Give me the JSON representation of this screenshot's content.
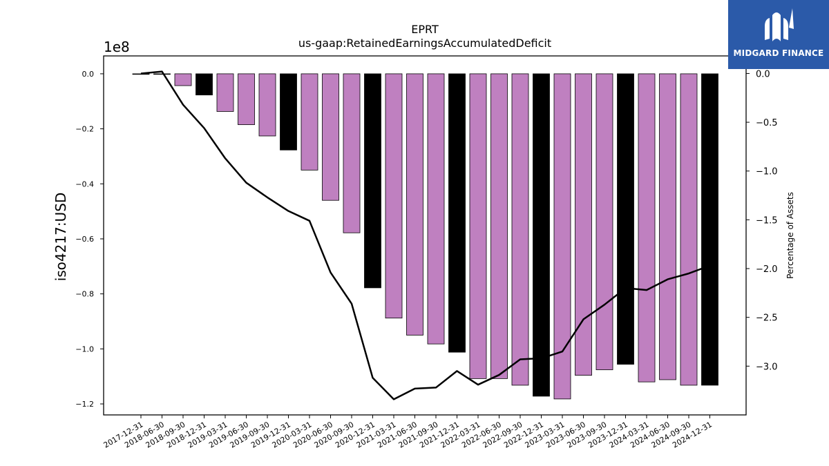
{
  "brand": {
    "name": "MIDGARD FINANCE",
    "bg_color": "#2b5aa9"
  },
  "chart_data": {
    "type": "bar",
    "title": "EPRT",
    "subtitle": "us-gaap:RetainedEarningsAccumulatedDeficit",
    "ylabel": "iso4217:USD",
    "y_offset_label": "1e8",
    "y_scale": 100000000,
    "ylim": [
      -1.24,
      0.065
    ],
    "yticks": [
      0.0,
      -0.2,
      -0.4,
      -0.6,
      -0.8,
      -1.0,
      -1.2
    ],
    "y2label": "Percentage of Assets",
    "y2lim": [
      -3.5,
      0.18
    ],
    "y2ticks": [
      0.0,
      -0.5,
      -1.0,
      -1.5,
      -2.0,
      -2.5,
      -3.0
    ],
    "bar_colors": {
      "default": "#bf80c0",
      "year_end": "#000000"
    },
    "categories": [
      "2017-12-31",
      "2018-06-30",
      "2018-09-30",
      "2018-12-31",
      "2019-03-31",
      "2019-06-30",
      "2019-09-30",
      "2019-12-31",
      "2020-03-31",
      "2020-06-30",
      "2020-09-30",
      "2020-12-31",
      "2021-03-31",
      "2021-06-30",
      "2021-09-30",
      "2021-12-31",
      "2022-03-31",
      "2022-06-30",
      "2022-09-30",
      "2022-12-31",
      "2023-03-31",
      "2023-06-30",
      "2023-09-30",
      "2023-12-31",
      "2024-03-31",
      "2024-06-30",
      "2024-09-30",
      "2024-12-31"
    ],
    "series": [
      {
        "kind": "bar",
        "values": [
          -0.001,
          -0.001,
          -0.043,
          -0.077,
          -0.137,
          -0.185,
          -0.226,
          -0.277,
          -0.35,
          -0.46,
          -0.578,
          -0.778,
          -0.888,
          -0.95,
          -0.982,
          -1.012,
          -1.108,
          -1.108,
          -1.132,
          -1.172,
          -1.182,
          -1.096,
          -1.076,
          -1.056,
          -1.12,
          -1.112,
          -1.132,
          -1.132
        ],
        "year_end": [
          true,
          false,
          false,
          true,
          false,
          false,
          false,
          true,
          false,
          false,
          false,
          true,
          false,
          false,
          false,
          true,
          false,
          false,
          false,
          true,
          false,
          false,
          false,
          true,
          false,
          false,
          false,
          true
        ]
      },
      {
        "kind": "line",
        "axis": "right",
        "values": [
          0.0,
          0.02,
          -0.32,
          -0.56,
          -0.87,
          -1.12,
          -1.27,
          -1.41,
          -1.51,
          -2.04,
          -2.36,
          -3.12,
          -3.34,
          -3.23,
          -3.22,
          -3.05,
          -3.19,
          -3.09,
          -2.93,
          -2.92,
          -2.85,
          -2.52,
          -2.37,
          -2.2,
          -2.22,
          -2.11,
          -2.05,
          -1.97
        ]
      }
    ]
  }
}
